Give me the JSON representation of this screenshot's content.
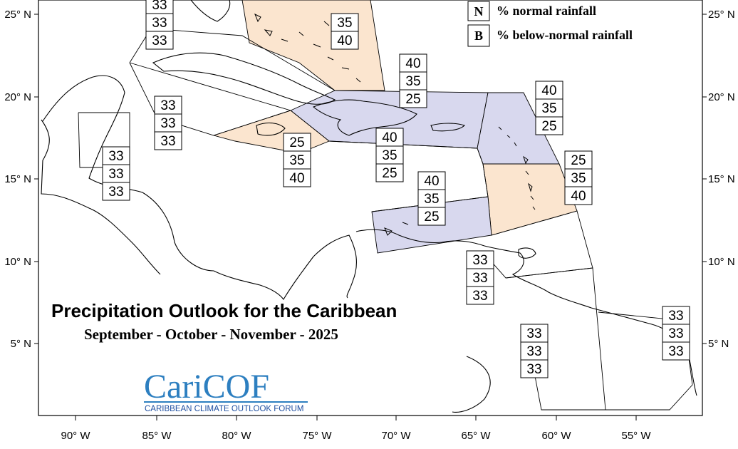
{
  "title": "Precipitation Outlook for the Caribbean",
  "subtitle": "September - October - November - 2025",
  "legend": [
    {
      "key": "N",
      "text": "% normal rainfall"
    },
    {
      "key": "B",
      "text": "% below-normal rainfall"
    }
  ],
  "axes": {
    "lat_labels": [
      "25° N",
      "20° N",
      "15° N",
      "10° N",
      "5° N"
    ],
    "lon_labels": [
      "90° W",
      "85° W",
      "80° W",
      "75° W",
      "70° W",
      "65° W",
      "60° W",
      "55° W"
    ]
  },
  "logo": {
    "main": "CariCOF",
    "sub": "CARIBBEAN CLIMATE OUTLOOK FORUM"
  },
  "colors": {
    "above_below_fill": "#fbe5cf",
    "below_normal_fill": "#d8d8ee",
    "line": "#000000"
  },
  "zones": [
    {
      "id": "bahamas",
      "probs": [
        "",
        "35",
        "40"
      ],
      "fill": "above"
    },
    {
      "id": "gulf-cuba-w",
      "probs": [
        "33",
        "33",
        "33"
      ],
      "fill": "none"
    },
    {
      "id": "cuba-central",
      "probs": [
        "33",
        "33",
        "33"
      ],
      "fill": "none"
    },
    {
      "id": "yucatan-belize",
      "probs": [
        "33",
        "33",
        "33"
      ],
      "fill": "none"
    },
    {
      "id": "jamaica",
      "probs": [
        "25",
        "35",
        "40"
      ],
      "fill": "above"
    },
    {
      "id": "hispaniola-pr",
      "probs": [
        "40",
        "35",
        "25"
      ],
      "fill": "below"
    },
    {
      "id": "caribbean-sea-central",
      "probs": [
        "40",
        "35",
        "25"
      ],
      "fill": "none"
    },
    {
      "id": "leeward-islands",
      "probs": [
        "40",
        "35",
        "25"
      ],
      "fill": "below"
    },
    {
      "id": "windward-islands",
      "probs": [
        "25",
        "35",
        "40"
      ],
      "fill": "above"
    },
    {
      "id": "abc-islands",
      "probs": [
        "40",
        "35",
        "25"
      ],
      "fill": "below"
    },
    {
      "id": "trinidad",
      "probs": [
        "33",
        "33",
        "33"
      ],
      "fill": "none"
    },
    {
      "id": "guyana",
      "probs": [
        "33",
        "33",
        "33"
      ],
      "fill": "none"
    },
    {
      "id": "suriname-guiana",
      "probs": [
        "33",
        "33",
        "33"
      ],
      "fill": "none"
    }
  ]
}
